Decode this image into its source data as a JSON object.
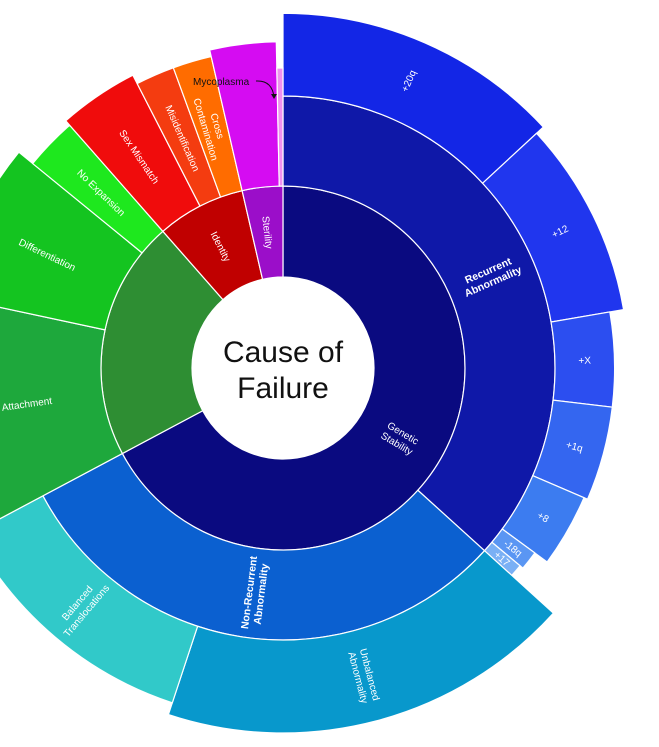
{
  "chart_data": {
    "type": "sunburst",
    "title": "",
    "center_label": [
      "Cause of",
      "Failure"
    ],
    "tree": [
      {
        "name": "Genetic Stability",
        "color": "#0a0a80",
        "children": [
          {
            "name": "Recurrent Abnormality",
            "color": "#0f18a8",
            "children": [
              {
                "name": "+20q",
                "value": 40,
                "color": "#1326e6"
              },
              {
                "name": "+12",
                "value": 28,
                "color": "#2036ee"
              },
              {
                "name": "+X",
                "value": 14,
                "color": "#2c4ef0"
              },
              {
                "name": "+1q",
                "value": 14,
                "color": "#3466f0"
              },
              {
                "name": "+8",
                "value": 11,
                "color": "#3c7cf0"
              },
              {
                "name": "-18q",
                "value": 3,
                "color": "#5a96f3"
              },
              {
                "name": "+17",
                "value": 2,
                "color": "#7ab0f5"
              }
            ]
          },
          {
            "name": "Non-Recurrent Abnormality",
            "color": "#0b60d0",
            "children": [
              {
                "name": "Unbalanced Abnormality",
                "value": 56,
                "color": "#0898cc"
              },
              {
                "name": "Balanced Translocations",
                "value": 37,
                "color": "#31c9c9"
              }
            ]
          }
        ]
      },
      {
        "name": "",
        "color": "#2e8e33",
        "children": [
          {
            "name": "No Attachment",
            "value": 34,
            "color": "#1ea83c"
          },
          {
            "name": "Differentiation",
            "value": 23,
            "color": "#14c420"
          },
          {
            "name": "No Expansion",
            "value": 8,
            "color": "#1ee81e"
          }
        ]
      },
      {
        "name": "Identity",
        "color": "#c00000",
        "children": [
          {
            "name": "Sex Mismatch",
            "value": 12,
            "color": "#f00c0c"
          },
          {
            "name": "Misidentification",
            "value": 6,
            "color": "#f43c10"
          },
          {
            "name": "Cross Contamination",
            "value": 6,
            "color": "#ff6c00"
          }
        ]
      },
      {
        "name": "Sterility",
        "color": "#9b0ec9",
        "children": [
          {
            "name": "",
            "value": 10,
            "color": "#d50cf2"
          },
          {
            "name": "Mycoplasma",
            "value": 1,
            "color": "#f090f0"
          }
        ]
      }
    ],
    "callouts": [
      {
        "target": "Mycoplasma",
        "text": "Mycoplasma"
      }
    ]
  }
}
